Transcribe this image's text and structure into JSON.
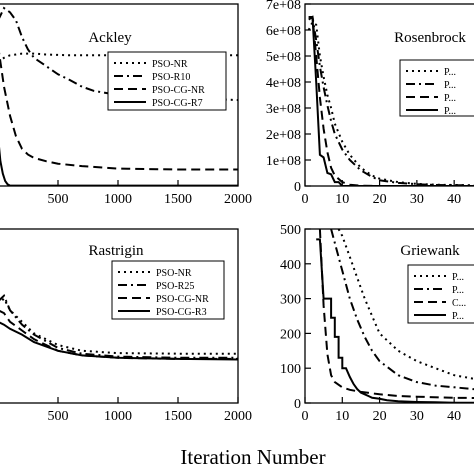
{
  "figure": {
    "xlabel": "Iteration Number"
  },
  "chart_data": [
    {
      "type": "line",
      "title": "Ackley",
      "xlim": [
        0,
        2000
      ],
      "ylim": [
        0,
        22
      ],
      "xticks": [
        500,
        1000,
        1500,
        2000
      ],
      "xtick_labels": [
        "500",
        "1000",
        "1500",
        "2000"
      ],
      "yticks": [],
      "ytick_labels": [],
      "grid": false,
      "legend_position": "top-right",
      "series": [
        {
          "name": "PSO-NR",
          "dash": "dotted",
          "x": [
            0,
            50,
            100,
            150,
            200,
            300,
            400,
            600,
            800,
            1000,
            1500,
            2000
          ],
          "y": [
            15,
            15.5,
            15.8,
            15.9,
            16,
            16,
            15.9,
            15.8,
            15.8,
            15.8,
            15.8,
            15.8
          ]
        },
        {
          "name": "PSO-R10",
          "dash": "dashdot",
          "x": [
            0,
            50,
            100,
            150,
            200,
            250,
            300,
            400,
            500,
            600,
            700,
            800,
            1000,
            1500,
            2000
          ],
          "y": [
            20,
            21.5,
            21,
            20,
            18,
            16.5,
            15.5,
            14.5,
            13.5,
            12.8,
            12,
            11.5,
            11,
            10.6,
            10.4
          ]
        },
        {
          "name": "PSO-CG-NR",
          "dash": "dashed",
          "x": [
            0,
            50,
            100,
            150,
            200,
            250,
            300,
            400,
            500,
            700,
            1000,
            1500,
            2000
          ],
          "y": [
            17,
            12,
            8.5,
            6,
            4.5,
            3.8,
            3.4,
            3,
            2.7,
            2.4,
            2.1,
            2,
            2
          ]
        },
        {
          "name": "PSO-CG-R7",
          "dash": "solid",
          "x": [
            0,
            20,
            40,
            60,
            80,
            100,
            2000
          ],
          "y": [
            6,
            3,
            1.5,
            0.6,
            0.2,
            0.05,
            0.05
          ]
        }
      ]
    },
    {
      "type": "line",
      "title": "Rosenbrock",
      "xlim": [
        0,
        48
      ],
      "ylim": [
        0,
        700000000
      ],
      "xticks": [
        0,
        10,
        20,
        30,
        40
      ],
      "xtick_labels": [
        "0",
        "10",
        "20",
        "30",
        "40"
      ],
      "yticks": [
        0,
        100000000,
        200000000,
        300000000,
        400000000,
        500000000,
        600000000,
        700000000
      ],
      "ytick_labels": [
        "0",
        "1e+08",
        "2e+08",
        "3e+08",
        "4e+08",
        "5e+08",
        "6e+08",
        "7e+08"
      ],
      "grid": false,
      "legend_position": "top-right",
      "legend_labels": [
        "P...",
        "P...",
        "P...",
        "P..."
      ],
      "series": [
        {
          "name": "P...",
          "dash": "dotted",
          "x": [
            1,
            2,
            3,
            4,
            5,
            6,
            7,
            8,
            10,
            12,
            15,
            18,
            20,
            25,
            30,
            35,
            40,
            48
          ],
          "y": [
            600000000,
            630000000,
            620000000,
            500000000,
            420000000,
            350000000,
            300000000,
            240000000,
            170000000,
            120000000,
            70000000,
            40000000,
            28000000,
            15000000,
            8000000,
            5000000,
            4000000,
            2000000
          ]
        },
        {
          "name": "P...",
          "dash": "dashdot",
          "x": [
            1,
            2,
            3,
            4,
            5,
            6,
            7,
            8,
            10,
            12,
            15,
            18,
            20,
            25,
            30,
            35,
            40,
            48
          ],
          "y": [
            640000000,
            650000000,
            560000000,
            460000000,
            380000000,
            310000000,
            250000000,
            200000000,
            140000000,
            100000000,
            60000000,
            35000000,
            22000000,
            12000000,
            7000000,
            4000000,
            3000000,
            2000000
          ]
        },
        {
          "name": "P...",
          "dash": "dashed",
          "x": [
            1,
            2,
            3,
            4,
            5,
            6,
            7,
            8,
            10,
            12,
            15,
            20,
            48
          ],
          "y": [
            650000000,
            650000000,
            500000000,
            340000000,
            220000000,
            130000000,
            70000000,
            40000000,
            15000000,
            5000000,
            1000000,
            0,
            0
          ]
        },
        {
          "name": "P...",
          "dash": "solid",
          "x": [
            1,
            2,
            3,
            4,
            5,
            6,
            7,
            8,
            9,
            10,
            11,
            48
          ],
          "y": [
            650000000,
            650000000,
            400000000,
            120000000,
            110000000,
            50000000,
            45000000,
            15000000,
            15000000,
            0,
            0,
            0
          ]
        }
      ]
    },
    {
      "type": "line",
      "title": "Rastrigin",
      "xlim": [
        0,
        2000
      ],
      "ylim": [
        0,
        300
      ],
      "xticks": [
        500,
        1000,
        1500,
        2000
      ],
      "xtick_labels": [
        "500",
        "1000",
        "1500",
        "2000"
      ],
      "yticks": [],
      "ytick_labels": [],
      "grid": false,
      "legend_position": "top-right",
      "series": [
        {
          "name": "PSO-NR",
          "dash": "dotted",
          "x": [
            0,
            50,
            100,
            200,
            300,
            500,
            700,
            1000,
            1500,
            2000
          ],
          "y": [
            170,
            180,
            160,
            140,
            120,
            100,
            90,
            86,
            85,
            85
          ]
        },
        {
          "name": "PSO-R25",
          "dash": "dashdot",
          "x": [
            0,
            50,
            100,
            200,
            300,
            500,
            700,
            1000,
            1500,
            2000
          ],
          "y": [
            175,
            185,
            160,
            135,
            118,
            95,
            85,
            80,
            78,
            78
          ]
        },
        {
          "name": "PSO-CG-NR",
          "dash": "dashed",
          "x": [
            0,
            50,
            100,
            200,
            300,
            500,
            700,
            1000,
            1500,
            2000
          ],
          "y": [
            160,
            155,
            140,
            125,
            110,
            90,
            82,
            78,
            76,
            76
          ]
        },
        {
          "name": "PSO-CG-R3",
          "dash": "solid",
          "x": [
            0,
            50,
            100,
            200,
            300,
            500,
            700,
            1000,
            1500,
            2000
          ],
          "y": [
            140,
            135,
            128,
            118,
            105,
            90,
            82,
            78,
            76,
            75
          ]
        }
      ]
    },
    {
      "type": "line",
      "title": "Griewank",
      "xlim": [
        0,
        48
      ],
      "ylim": [
        0,
        500
      ],
      "xticks": [
        0,
        10,
        20,
        30,
        40
      ],
      "xtick_labels": [
        "0",
        "10",
        "20",
        "30",
        "40"
      ],
      "yticks": [
        0,
        100,
        200,
        300,
        400,
        500
      ],
      "ytick_labels": [
        "0",
        "100",
        "200",
        "300",
        "400",
        "500"
      ],
      "grid": false,
      "legend_position": "top-right",
      "legend_labels": [
        "P...",
        "P...",
        "C...",
        "P..."
      ],
      "series": [
        {
          "name": "P...",
          "dash": "dotted",
          "x": [
            9,
            10,
            12,
            14,
            16,
            18,
            20,
            25,
            30,
            35,
            40,
            45,
            48
          ],
          "y": [
            500,
            480,
            420,
            360,
            300,
            250,
            200,
            150,
            120,
            100,
            80,
            70,
            65
          ]
        },
        {
          "name": "P...",
          "dash": "dashdot",
          "x": [
            7,
            8,
            10,
            12,
            14,
            16,
            18,
            20,
            25,
            30,
            35,
            40,
            45,
            48
          ],
          "y": [
            500,
            460,
            380,
            300,
            240,
            190,
            150,
            120,
            80,
            60,
            50,
            45,
            40,
            38
          ]
        },
        {
          "name": "C...",
          "dash": "dashed",
          "x": [
            4,
            5,
            6,
            7,
            8,
            10,
            12,
            15,
            20,
            25,
            30,
            40,
            48
          ],
          "y": [
            500,
            280,
            140,
            80,
            60,
            45,
            38,
            32,
            25,
            20,
            18,
            15,
            14
          ]
        },
        {
          "name": "P...",
          "dash": "solid",
          "x": [
            3,
            4,
            5,
            6,
            7,
            7,
            8,
            8,
            9,
            9,
            10,
            10,
            11,
            12,
            13,
            14,
            15,
            16,
            17,
            18,
            20,
            22,
            25,
            30,
            35,
            40,
            48
          ],
          "y": [
            470,
            470,
            300,
            300,
            300,
            245,
            245,
            190,
            190,
            130,
            130,
            100,
            100,
            75,
            55,
            40,
            30,
            25,
            20,
            15,
            12,
            8,
            5,
            3,
            2,
            1,
            1
          ]
        }
      ]
    }
  ]
}
